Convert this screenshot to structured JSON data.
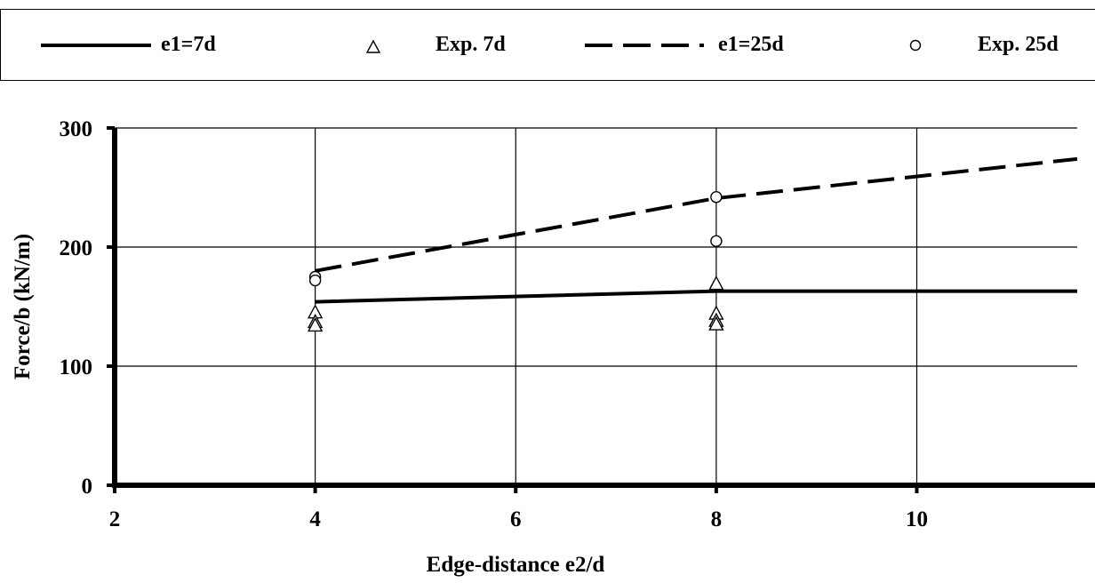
{
  "chart_data": {
    "type": "line",
    "xlabel": "Edge-distance e2/d",
    "ylabel": "Force/b (kN/m)",
    "xlim": [
      2,
      11.6
    ],
    "ylim": [
      0,
      300
    ],
    "xticks": [
      2,
      4,
      6,
      8,
      10
    ],
    "yticks": [
      0,
      100,
      200,
      300
    ],
    "grid": true,
    "legend_position": "top",
    "series": [
      {
        "name": "e1=7d",
        "kind": "line",
        "style": "solid",
        "x": [
          4,
          8,
          11.6
        ],
        "y": [
          154,
          163,
          163
        ]
      },
      {
        "name": "Exp. 7d",
        "kind": "scatter",
        "marker": "triangle",
        "x": [
          4,
          4,
          4,
          8,
          8,
          8,
          8
        ],
        "y": [
          145,
          137,
          134,
          169,
          144,
          138,
          135
        ]
      },
      {
        "name": "e1=25d",
        "kind": "line",
        "style": "dashed",
        "x": [
          4,
          8,
          11.6
        ],
        "y": [
          180,
          241,
          274
        ]
      },
      {
        "name": "Exp. 25d",
        "kind": "scatter",
        "marker": "circle",
        "x": [
          4,
          4,
          8,
          8
        ],
        "y": [
          175,
          172,
          242,
          205
        ]
      }
    ]
  }
}
